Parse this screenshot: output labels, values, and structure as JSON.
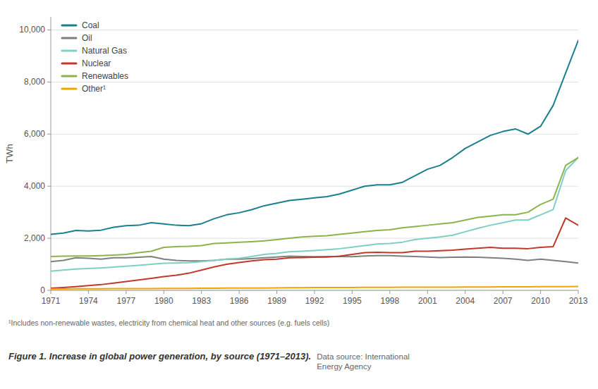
{
  "chart_data": {
    "type": "line",
    "x": [
      1971,
      1972,
      1973,
      1974,
      1975,
      1976,
      1977,
      1978,
      1979,
      1980,
      1981,
      1982,
      1983,
      1984,
      1985,
      1986,
      1987,
      1988,
      1989,
      1990,
      1991,
      1992,
      1993,
      1994,
      1995,
      1996,
      1997,
      1998,
      1999,
      2000,
      2001,
      2002,
      2003,
      2004,
      2005,
      2006,
      2007,
      2008,
      2009,
      2010,
      2011,
      2012,
      2013
    ],
    "series": [
      {
        "name": "Coal",
        "color": "#1a7f8e",
        "values": [
          2150,
          2200,
          2300,
          2280,
          2310,
          2420,
          2480,
          2500,
          2600,
          2550,
          2500,
          2480,
          2560,
          2750,
          2900,
          2980,
          3100,
          3250,
          3350,
          3450,
          3500,
          3550,
          3600,
          3700,
          3850,
          4000,
          4050,
          4050,
          4150,
          4400,
          4650,
          4800,
          5100,
          5450,
          5700,
          5950,
          6100,
          6200,
          6000,
          6300,
          7100,
          8350,
          9600
        ]
      },
      {
        "name": "Oil",
        "color": "#7f7f7f",
        "values": [
          1100,
          1150,
          1250,
          1230,
          1200,
          1250,
          1250,
          1270,
          1300,
          1200,
          1150,
          1130,
          1130,
          1150,
          1200,
          1200,
          1220,
          1250,
          1280,
          1310,
          1300,
          1290,
          1300,
          1300,
          1290,
          1320,
          1330,
          1330,
          1310,
          1300,
          1280,
          1260,
          1270,
          1280,
          1270,
          1250,
          1230,
          1200,
          1150,
          1200,
          1150,
          1100,
          1050
        ]
      },
      {
        "name": "Natural Gas",
        "color": "#7ecfc4",
        "values": [
          740,
          780,
          820,
          840,
          860,
          890,
          930,
          960,
          1000,
          1040,
          1050,
          1060,
          1100,
          1150,
          1200,
          1230,
          1300,
          1380,
          1420,
          1480,
          1500,
          1530,
          1560,
          1600,
          1660,
          1720,
          1780,
          1800,
          1850,
          1950,
          2000,
          2050,
          2120,
          2250,
          2380,
          2500,
          2600,
          2700,
          2700,
          2900,
          3100,
          4600,
          5100
        ]
      },
      {
        "name": "Nuclear",
        "color": "#c0392b",
        "values": [
          80,
          110,
          140,
          180,
          220,
          280,
          340,
          400,
          460,
          530,
          580,
          660,
          780,
          900,
          1000,
          1070,
          1130,
          1180,
          1200,
          1250,
          1260,
          1270,
          1280,
          1310,
          1380,
          1450,
          1460,
          1450,
          1450,
          1500,
          1500,
          1520,
          1540,
          1580,
          1620,
          1650,
          1620,
          1620,
          1600,
          1650,
          1680,
          2780,
          2500
        ]
      },
      {
        "name": "Renewables",
        "color": "#8db34a",
        "values": [
          1300,
          1310,
          1320,
          1320,
          1330,
          1350,
          1380,
          1450,
          1500,
          1650,
          1680,
          1690,
          1720,
          1800,
          1820,
          1850,
          1870,
          1900,
          1950,
          2000,
          2050,
          2080,
          2100,
          2150,
          2200,
          2250,
          2300,
          2330,
          2400,
          2450,
          2500,
          2550,
          2600,
          2700,
          2800,
          2850,
          2900,
          2900,
          3000,
          3300,
          3500,
          4800,
          5100
        ]
      },
      {
        "name": "Other¹",
        "color": "#f0a500",
        "values": [
          50,
          55,
          60,
          60,
          60,
          65,
          65,
          70,
          70,
          75,
          75,
          75,
          80,
          80,
          85,
          85,
          90,
          90,
          95,
          100,
          100,
          105,
          105,
          110,
          110,
          115,
          115,
          115,
          120,
          120,
          120,
          125,
          125,
          130,
          130,
          130,
          135,
          135,
          135,
          140,
          140,
          145,
          150
        ]
      }
    ],
    "y_label": "TWh",
    "xlim": [
      1971,
      2013
    ],
    "xticks": [
      1971,
      1974,
      1977,
      1980,
      1983,
      1986,
      1989,
      1992,
      1995,
      1998,
      2001,
      2004,
      2007,
      2010,
      2013
    ],
    "ylim": [
      0,
      10500
    ],
    "yticks": [
      0,
      {
        "value": 2000,
        "label": "2,000"
      },
      {
        "value": 4000,
        "label": "4,000"
      },
      {
        "value": 6000,
        "label": "6,000"
      },
      {
        "value": 8000,
        "label": "8,000"
      },
      {
        "value": 10000,
        "label": "10,000"
      }
    ],
    "grid": true,
    "legend": "upper left",
    "footnote": "¹Includes non-renewable wastes, electricity from chemical heat and other sources (e.g. fuels cells)",
    "caption": "Figure 1. Increase in global power generation, by source (1971–2013).",
    "source": "Data source: International\nEnergy Agency"
  }
}
